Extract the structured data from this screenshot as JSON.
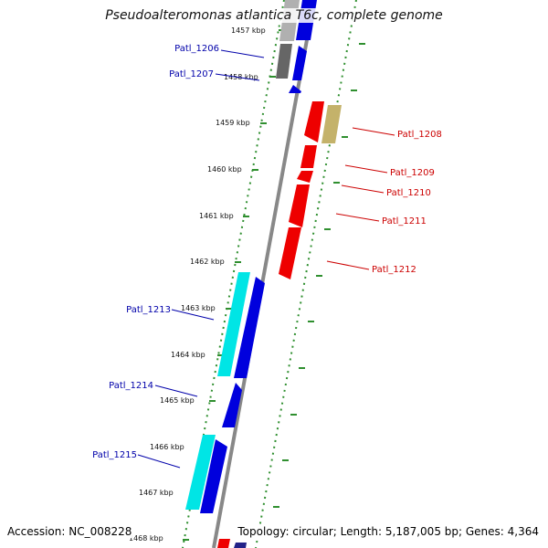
{
  "title": "Pseudoalteromonas atlantica T6c, complete genome",
  "footer": {
    "accession": "Accession: NC_008228",
    "topology": "Topology: circular; Length: 5,187,005 bp; Genes: 4,364"
  },
  "colors": {
    "forward_cds": "#0000dd",
    "reverse_cds": "#ee0000",
    "rna": "#00e5e5",
    "grey": "#666666",
    "tan": "#c4b26a",
    "backbone": "#888888",
    "tick": "#2f8f2f",
    "label_blue": "#0000aa",
    "label_red": "#cc0000"
  },
  "kbp_ticks": [
    "1457 kbp",
    "1458 kbp",
    "1459 kbp",
    "1460 kbp",
    "1461 kbp",
    "1462 kbp",
    "1463 kbp",
    "1464 kbp",
    "1465 kbp",
    "1466 kbp",
    "1467 kbp",
    "1468 kbp"
  ],
  "gene_labels": {
    "patl_1206": "Patl_1206",
    "patl_1207": "Patl_1207",
    "patl_1208": "Patl_1208",
    "patl_1209": "Patl_1209",
    "patl_1210": "Patl_1210",
    "patl_1211": "Patl_1211",
    "patl_1212": "Patl_1212",
    "patl_1213": "Patl_1213",
    "patl_1214": "Patl_1214",
    "patl_1215": "Patl_1215"
  }
}
